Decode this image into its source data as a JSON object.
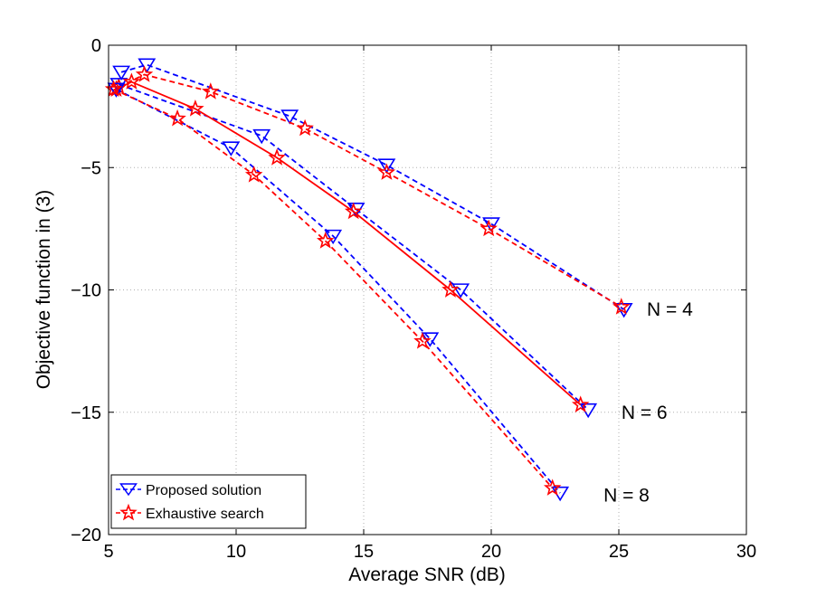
{
  "chart_data": {
    "type": "line",
    "xlabel": "Average SNR (dB)",
    "ylabel": "Objective function in (3)",
    "xlim": [
      5,
      30
    ],
    "ylim": [
      -20,
      0
    ],
    "xticks": [
      5,
      10,
      15,
      20,
      25,
      30
    ],
    "yticks": [
      0,
      -5,
      -10,
      -15,
      -20
    ],
    "ytick_labels": [
      "0",
      "−5",
      "−10",
      "−15",
      "−20"
    ],
    "grid": true,
    "legend_position": "bottom-left",
    "legend": [
      "Proposed solution",
      "Exhaustive search"
    ],
    "colors": {
      "proposed": "#0000ff",
      "exhaustive": "#ff0000"
    },
    "series": [
      {
        "name": "Proposed solution",
        "group": "N = 4",
        "style": "dashed",
        "marker": "triangle-down",
        "color": "#0000ff",
        "x": [
          5.5,
          6.5,
          12.1,
          15.9,
          20.0,
          25.2
        ],
        "y": [
          -1.1,
          -0.8,
          -2.9,
          -4.9,
          -7.3,
          -10.8
        ]
      },
      {
        "name": "Exhaustive search",
        "group": "N = 4",
        "style": "dashed",
        "marker": "star",
        "color": "#ff0000",
        "x": [
          5.4,
          6.4,
          9.0,
          12.7,
          15.9,
          19.9,
          25.1
        ],
        "y": [
          -1.7,
          -1.2,
          -1.9,
          -3.4,
          -5.2,
          -7.5,
          -10.7
        ]
      },
      {
        "name": "Proposed solution",
        "group": "N = 6",
        "style": "dashed",
        "marker": "triangle-down",
        "color": "#0000ff",
        "x": [
          5.4,
          11.0,
          14.7,
          18.8,
          23.8
        ],
        "y": [
          -1.6,
          -3.7,
          -6.7,
          -10.0,
          -14.9
        ]
      },
      {
        "name": "Exhaustive search",
        "group": "N = 6",
        "style": "solid",
        "marker": "star",
        "color": "#ff0000",
        "x": [
          5.3,
          5.9,
          8.4,
          11.6,
          14.6,
          18.4,
          23.5
        ],
        "y": [
          -1.8,
          -1.5,
          -2.6,
          -4.6,
          -6.8,
          -10.0,
          -14.7
        ]
      },
      {
        "name": "Proposed solution",
        "group": "N = 8",
        "style": "dashed",
        "marker": "triangle-down",
        "color": "#0000ff",
        "x": [
          5.3,
          9.8,
          13.8,
          17.6,
          22.7
        ],
        "y": [
          -1.8,
          -4.2,
          -7.8,
          -12.0,
          -18.3
        ]
      },
      {
        "name": "Exhaustive search",
        "group": "N = 8",
        "style": "dashed",
        "marker": "star",
        "color": "#ff0000",
        "x": [
          5.2,
          7.7,
          10.7,
          13.5,
          17.3,
          22.4
        ],
        "y": [
          -1.8,
          -3.0,
          -5.3,
          -8.0,
          -12.1,
          -18.1
        ]
      }
    ],
    "annotations": [
      {
        "text": "N = 4",
        "x": 26.1,
        "y": -10.8
      },
      {
        "text": "N = 6",
        "x": 25.1,
        "y": -15.0
      },
      {
        "text": "N = 8",
        "x": 24.4,
        "y": -18.4
      }
    ]
  }
}
